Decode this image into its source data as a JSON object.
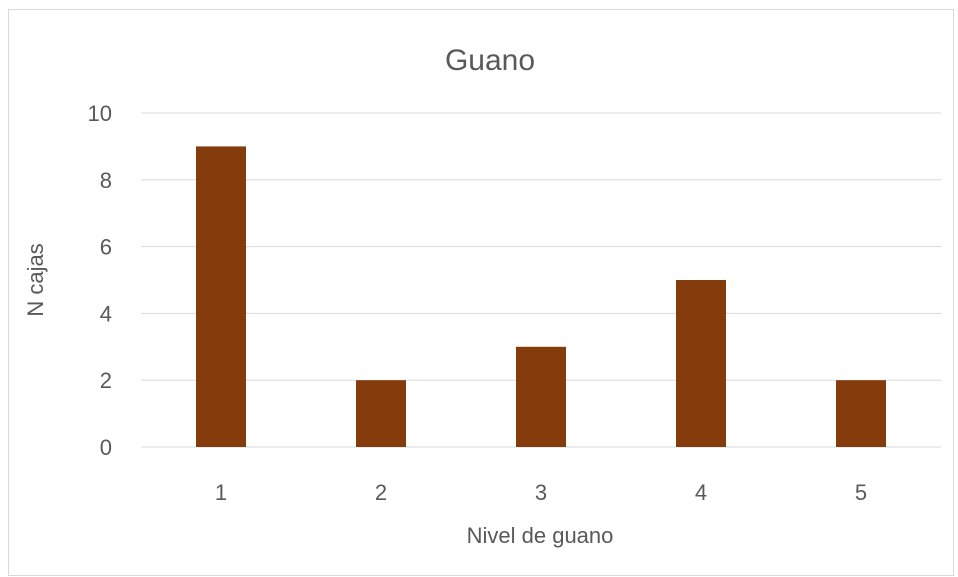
{
  "chart_data": {
    "type": "bar",
    "title": "Guano",
    "xlabel": "Nivel de guano",
    "ylabel": "N cajas",
    "categories": [
      "1",
      "2",
      "3",
      "4",
      "5"
    ],
    "values": [
      9,
      2,
      3,
      5,
      2
    ],
    "ylim": [
      0,
      10
    ],
    "yticks": [
      "0",
      "2",
      "4",
      "6",
      "8",
      "10"
    ],
    "grid": true,
    "legend": "none",
    "bar_color": "#843C0C"
  }
}
